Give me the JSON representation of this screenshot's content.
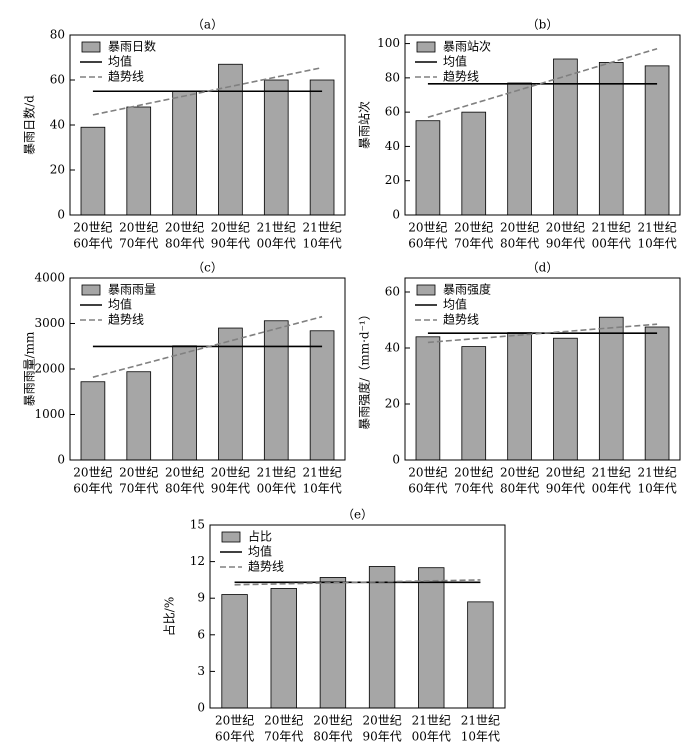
{
  "chart_data": [
    {
      "type": "bar",
      "title": "（a）",
      "ylabel": "暴雨日数/d",
      "categories": [
        [
          "20世纪",
          "60年代"
        ],
        [
          "20世纪",
          "70年代"
        ],
        [
          "20世纪",
          "80年代"
        ],
        [
          "20世纪",
          "90年代"
        ],
        [
          "21世纪",
          "00年代"
        ],
        [
          "21世纪",
          "10年代"
        ]
      ],
      "ylim": [
        0,
        80
      ],
      "yticks": [
        0,
        20,
        40,
        60,
        80
      ],
      "series": [
        {
          "name": "暴雨日数",
          "type": "bar",
          "color": "#a6a6a6",
          "values": [
            39,
            48,
            55,
            67,
            60,
            60
          ]
        },
        {
          "name": "均值",
          "type": "line",
          "color": "#000000",
          "values": [
            55,
            55,
            55,
            55,
            55,
            55
          ]
        },
        {
          "name": "趋势线",
          "type": "line",
          "dash": true,
          "color": "#808080",
          "values": [
            44.5,
            48.7,
            52.9,
            57.1,
            61.3,
            65.5
          ]
        }
      ]
    },
    {
      "type": "bar",
      "title": "（b）",
      "ylabel": "暴雨站次",
      "categories": [
        [
          "20世纪",
          "60年代"
        ],
        [
          "20世纪",
          "70年代"
        ],
        [
          "20世纪",
          "80年代"
        ],
        [
          "20世纪",
          "90年代"
        ],
        [
          "21世纪",
          "00年代"
        ],
        [
          "21世纪",
          "10年代"
        ]
      ],
      "ylim": [
        0,
        105
      ],
      "yticks": [
        0,
        20,
        40,
        60,
        80,
        100
      ],
      "series": [
        {
          "name": "暴雨站次",
          "type": "bar",
          "color": "#a6a6a6",
          "values": [
            55,
            60,
            77,
            91,
            89,
            87
          ]
        },
        {
          "name": "均值",
          "type": "line",
          "color": "#000000",
          "values": [
            76.5,
            76.5,
            76.5,
            76.5,
            76.5,
            76.5
          ]
        },
        {
          "name": "趋势线",
          "type": "line",
          "dash": true,
          "color": "#808080",
          "values": [
            57,
            65,
            73,
            81,
            89,
            97
          ]
        }
      ]
    },
    {
      "type": "bar",
      "title": "（c）",
      "ylabel": "暴雨雨量/mm",
      "categories": [
        [
          "20世纪",
          "60年代"
        ],
        [
          "20世纪",
          "70年代"
        ],
        [
          "20世纪",
          "80年代"
        ],
        [
          "20世纪",
          "90年代"
        ],
        [
          "21世纪",
          "00年代"
        ],
        [
          "21世纪",
          "10年代"
        ]
      ],
      "ylim": [
        0,
        4000
      ],
      "yticks": [
        0,
        1000,
        2000,
        3000,
        4000
      ],
      "series": [
        {
          "name": "暴雨雨量",
          "type": "bar",
          "color": "#a6a6a6",
          "values": [
            1720,
            1940,
            2510,
            2900,
            3060,
            2840
          ]
        },
        {
          "name": "均值",
          "type": "line",
          "color": "#000000",
          "values": [
            2495,
            2495,
            2495,
            2495,
            2495,
            2495
          ]
        },
        {
          "name": "趋势线",
          "type": "line",
          "dash": true,
          "color": "#808080",
          "values": [
            1820,
            2086,
            2352,
            2618,
            2884,
            3150
          ]
        }
      ]
    },
    {
      "type": "bar",
      "title": "（d）",
      "ylabel": "暴雨强度/（mm·d⁻¹）",
      "categories": [
        [
          "20世纪",
          "60年代"
        ],
        [
          "20世纪",
          "70年代"
        ],
        [
          "20世纪",
          "80年代"
        ],
        [
          "20世纪",
          "90年代"
        ],
        [
          "21世纪",
          "00年代"
        ],
        [
          "21世纪",
          "10年代"
        ]
      ],
      "ylim": [
        0,
        65
      ],
      "yticks": [
        0,
        20,
        40,
        60
      ],
      "series": [
        {
          "name": "暴雨强度",
          "type": "bar",
          "color": "#a6a6a6",
          "values": [
            44,
            40.5,
            45.5,
            43.5,
            51,
            47.5
          ]
        },
        {
          "name": "均值",
          "type": "line",
          "color": "#000000",
          "values": [
            45.3,
            45.3,
            45.3,
            45.3,
            45.3,
            45.3
          ]
        },
        {
          "name": "趋势线",
          "type": "line",
          "dash": true,
          "color": "#808080",
          "values": [
            42,
            43.3,
            44.6,
            45.9,
            47.2,
            48.5
          ]
        }
      ]
    },
    {
      "type": "bar",
      "title": "（e）",
      "ylabel": "占比/%",
      "categories": [
        [
          "20世纪",
          "60年代"
        ],
        [
          "20世纪",
          "70年代"
        ],
        [
          "20世纪",
          "80年代"
        ],
        [
          "20世纪",
          "90年代"
        ],
        [
          "21世纪",
          "00年代"
        ],
        [
          "21世纪",
          "10年代"
        ]
      ],
      "ylim": [
        0,
        15
      ],
      "yticks": [
        0,
        3,
        6,
        9,
        12,
        15
      ],
      "series": [
        {
          "name": "占比",
          "type": "bar",
          "color": "#a6a6a6",
          "values": [
            9.3,
            9.8,
            10.7,
            11.6,
            11.5,
            8.7
          ]
        },
        {
          "name": "均值",
          "type": "line",
          "color": "#000000",
          "values": [
            10.3,
            10.3,
            10.3,
            10.3,
            10.3,
            10.3
          ]
        },
        {
          "name": "趋势线",
          "type": "line",
          "dash": true,
          "color": "#808080",
          "values": [
            10.1,
            10.18,
            10.26,
            10.34,
            10.42,
            10.5
          ]
        }
      ]
    }
  ]
}
